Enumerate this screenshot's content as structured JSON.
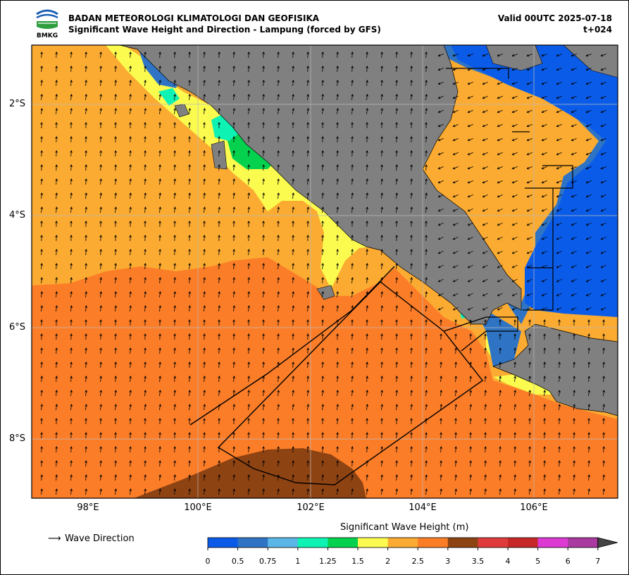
{
  "header": {
    "agency": "BADAN METEOROLOGI KLIMATOLOGI DAN GEOFISIKA",
    "subtitle": "Significant Wave Height and Direction - Lampung (forced by GFS)",
    "valid": "Valid 00UTC 2025-07-18",
    "step": "t+024",
    "logo_text": "BMKG"
  },
  "map": {
    "lon_range": [
      97.0,
      107.5
    ],
    "lat_range": [
      -9.0,
      -0.9
    ],
    "lat_ticks": [
      "2°S",
      "4°S",
      "6°S",
      "8°S"
    ],
    "lon_ticks": [
      "98°E",
      "100°E",
      "102°E",
      "104°E",
      "106°E"
    ],
    "land_color": "#808080",
    "grid": true
  },
  "legend": {
    "wave_direction_label": "Wave Direction"
  },
  "colorbar": {
    "title": "Significant Wave Height (m)",
    "ticks": [
      "0",
      "0.5",
      "0.75",
      "1",
      "1.25",
      "1.5",
      "2",
      "2.5",
      "3",
      "3.5",
      "4",
      "5",
      "6",
      "7"
    ],
    "colors": [
      "#0a5ce8",
      "#2f74c4",
      "#5ab6e6",
      "#0ef2b4",
      "#04d24e",
      "#fbfb4f",
      "#fbab31",
      "#fb7d28",
      "#8e4313",
      "#df3b3b",
      "#c62828",
      "#dc3ad2",
      "#a83aa0"
    ],
    "extend_color": "#444444"
  }
}
